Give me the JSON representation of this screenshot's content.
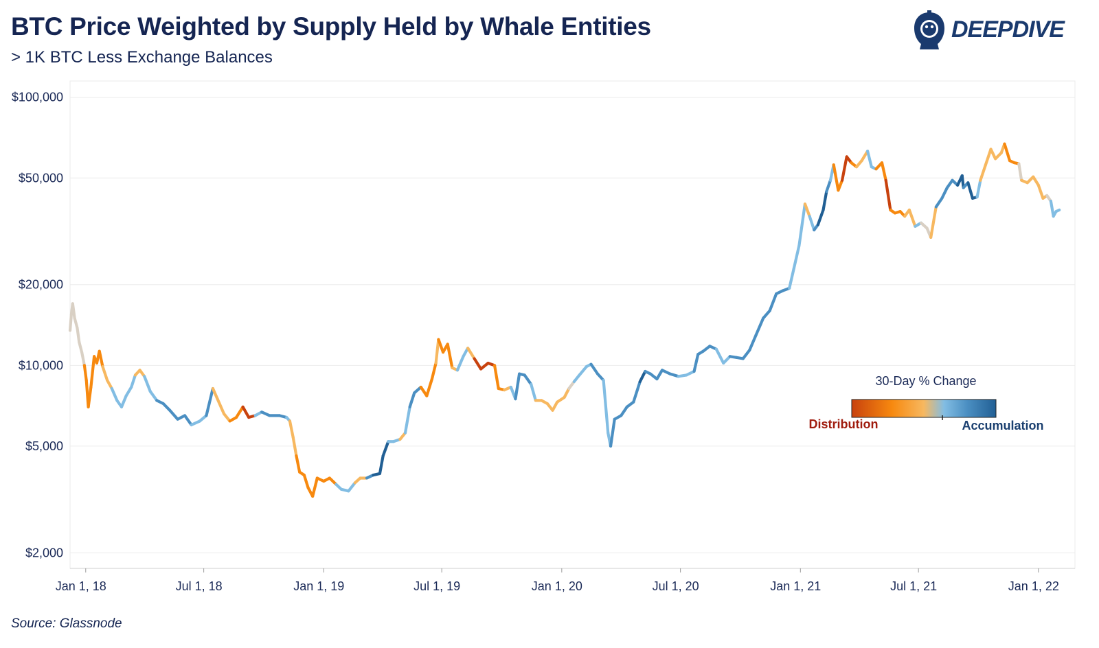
{
  "header": {
    "title": "BTC Price Weighted by Supply Held by Whale Entities",
    "subtitle": "> 1K BTC Less Exchange Balances",
    "logo_text": "DEEPDIVE"
  },
  "footer": {
    "source": "Source: Glassnode"
  },
  "colors": {
    "dist_strong": "#c8420e",
    "dist": "#f7890f",
    "dist_light": "#f7b860",
    "neutral": "#d9d0c4",
    "acc_light": "#82bde3",
    "acc": "#4b8fc2",
    "acc_strong": "#215f94",
    "grid": "#ebebeb",
    "text": "#1b2a57"
  },
  "chart_data": {
    "type": "line",
    "title": "BTC Price Weighted by Supply Held by Whale Entities",
    "subtitle": "> 1K BTC Less Exchange Balances",
    "xlabel": "",
    "ylabel": "",
    "y_scale": "log",
    "ylim": [
      1750,
      115000
    ],
    "xlim": [
      "2017-12-08",
      "2022-02-26"
    ],
    "y_ticks": [
      {
        "value": 2000,
        "label": "$2,000"
      },
      {
        "value": 5000,
        "label": "$5,000"
      },
      {
        "value": 10000,
        "label": "$10,000"
      },
      {
        "value": 20000,
        "label": "$20,000"
      },
      {
        "value": 50000,
        "label": "$50,000"
      },
      {
        "value": 100000,
        "label": "$100,000"
      }
    ],
    "x_ticks": [
      {
        "date": "2018-01-01",
        "label": "Jan 1, 18"
      },
      {
        "date": "2018-07-01",
        "label": "Jul 1, 18"
      },
      {
        "date": "2019-01-01",
        "label": "Jan 1, 19"
      },
      {
        "date": "2019-07-01",
        "label": "Jul 1, 19"
      },
      {
        "date": "2020-01-01",
        "label": "Jan 1, 20"
      },
      {
        "date": "2020-07-01",
        "label": "Jul 1, 20"
      },
      {
        "date": "2021-01-01",
        "label": "Jan 1, 21"
      },
      {
        "date": "2021-07-01",
        "label": "Jul 1, 21"
      },
      {
        "date": "2022-01-01",
        "label": "Jan 1, 22"
      }
    ],
    "grid": true,
    "legend": {
      "title": "30-Day % Change",
      "low_label": "Distribution",
      "high_label": "Accumulation",
      "placement": "center-right"
    },
    "series": [
      {
        "points": [
          [
            "2017-12-08",
            13500,
            "neutral"
          ],
          [
            "2017-12-10",
            15500,
            "neutral"
          ],
          [
            "2017-12-12",
            17000,
            "neutral"
          ],
          [
            "2017-12-15",
            15000,
            "neutral"
          ],
          [
            "2017-12-19",
            13800,
            "neutral"
          ],
          [
            "2017-12-22",
            12200,
            "neutral"
          ],
          [
            "2017-12-26",
            11200,
            "neutral"
          ],
          [
            "2017-12-30",
            10000,
            "neutral"
          ],
          [
            "2018-01-02",
            8800,
            "dist"
          ],
          [
            "2018-01-05",
            7000,
            "dist"
          ],
          [
            "2018-01-09",
            8300,
            "dist"
          ],
          [
            "2018-01-14",
            10800,
            "dist"
          ],
          [
            "2018-01-18",
            10200,
            "dist"
          ],
          [
            "2018-01-22",
            11300,
            "dist"
          ],
          [
            "2018-01-27",
            9900,
            "dist"
          ],
          [
            "2018-02-03",
            8800,
            "dist_light"
          ],
          [
            "2018-02-10",
            8200,
            "dist_light"
          ],
          [
            "2018-02-18",
            7400,
            "acc_light"
          ],
          [
            "2018-02-25",
            7000,
            "acc_light"
          ],
          [
            "2018-03-04",
            7700,
            "acc_light"
          ],
          [
            "2018-03-12",
            8300,
            "acc_light"
          ],
          [
            "2018-03-18",
            9200,
            "acc_light"
          ],
          [
            "2018-03-25",
            9600,
            "dist_light"
          ],
          [
            "2018-04-01",
            9100,
            "dist_light"
          ],
          [
            "2018-04-10",
            8000,
            "acc_light"
          ],
          [
            "2018-04-20",
            7400,
            "acc_light"
          ],
          [
            "2018-04-30",
            7200,
            "acc"
          ],
          [
            "2018-05-10",
            6800,
            "acc"
          ],
          [
            "2018-05-22",
            6300,
            "acc"
          ],
          [
            "2018-06-02",
            6500,
            "acc"
          ],
          [
            "2018-06-12",
            6000,
            "acc"
          ],
          [
            "2018-06-25",
            6200,
            "acc_light"
          ],
          [
            "2018-07-05",
            6500,
            "acc_light"
          ],
          [
            "2018-07-15",
            8200,
            "acc"
          ],
          [
            "2018-07-22",
            7500,
            "dist_light"
          ],
          [
            "2018-08-01",
            6600,
            "dist_light"
          ],
          [
            "2018-08-10",
            6200,
            "dist_light"
          ],
          [
            "2018-08-20",
            6400,
            "dist"
          ],
          [
            "2018-08-30",
            7000,
            "dist"
          ],
          [
            "2018-09-08",
            6400,
            "dist_strong"
          ],
          [
            "2018-09-18",
            6500,
            "dist_strong"
          ],
          [
            "2018-09-28",
            6700,
            "acc_light"
          ],
          [
            "2018-10-10",
            6500,
            "acc"
          ],
          [
            "2018-10-25",
            6500,
            "acc"
          ],
          [
            "2018-11-05",
            6400,
            "acc"
          ],
          [
            "2018-11-10",
            6200,
            "acc_light"
          ],
          [
            "2018-11-15",
            5400,
            "dist_light"
          ],
          [
            "2018-11-20",
            4600,
            "dist_light"
          ],
          [
            "2018-11-25",
            4000,
            "dist"
          ],
          [
            "2018-12-02",
            3900,
            "dist"
          ],
          [
            "2018-12-08",
            3500,
            "dist"
          ],
          [
            "2018-12-15",
            3250,
            "dist"
          ],
          [
            "2018-12-22",
            3800,
            "dist"
          ],
          [
            "2019-01-01",
            3700,
            "dist"
          ],
          [
            "2019-01-10",
            3800,
            "dist"
          ],
          [
            "2019-01-20",
            3600,
            "dist"
          ],
          [
            "2019-01-28",
            3450,
            "acc_light"
          ],
          [
            "2019-02-08",
            3400,
            "acc_light"
          ],
          [
            "2019-02-18",
            3650,
            "acc_light"
          ],
          [
            "2019-02-26",
            3800,
            "dist_light"
          ],
          [
            "2019-03-08",
            3800,
            "dist_light"
          ],
          [
            "2019-03-18",
            3900,
            "acc"
          ],
          [
            "2019-03-28",
            3950,
            "acc_strong"
          ],
          [
            "2019-04-02",
            4600,
            "acc_strong"
          ],
          [
            "2019-04-10",
            5200,
            "acc_strong"
          ],
          [
            "2019-04-18",
            5200,
            "acc_light"
          ],
          [
            "2019-04-28",
            5300,
            "acc_light"
          ],
          [
            "2019-05-06",
            5600,
            "dist_light"
          ],
          [
            "2019-05-13",
            7000,
            "acc_light"
          ],
          [
            "2019-05-20",
            7900,
            "acc"
          ],
          [
            "2019-05-30",
            8300,
            "acc"
          ],
          [
            "2019-06-08",
            7700,
            "dist"
          ],
          [
            "2019-06-16",
            8900,
            "dist"
          ],
          [
            "2019-06-22",
            10200,
            "dist"
          ],
          [
            "2019-06-26",
            12500,
            "dist_light"
          ],
          [
            "2019-07-03",
            11200,
            "dist"
          ],
          [
            "2019-07-10",
            12000,
            "dist"
          ],
          [
            "2019-07-17",
            9800,
            "dist"
          ],
          [
            "2019-07-25",
            9600,
            "dist_light"
          ],
          [
            "2019-08-03",
            10800,
            "acc_light"
          ],
          [
            "2019-08-10",
            11600,
            "acc_light"
          ],
          [
            "2019-08-20",
            10600,
            "dist_light"
          ],
          [
            "2019-08-30",
            9700,
            "dist_strong"
          ],
          [
            "2019-09-10",
            10200,
            "dist_strong"
          ],
          [
            "2019-09-20",
            10000,
            "dist_strong"
          ],
          [
            "2019-09-26",
            8200,
            "dist"
          ],
          [
            "2019-10-05",
            8100,
            "dist"
          ],
          [
            "2019-10-15",
            8300,
            "dist_light"
          ],
          [
            "2019-10-22",
            7500,
            "acc_light"
          ],
          [
            "2019-10-28",
            9300,
            "acc"
          ],
          [
            "2019-11-05",
            9200,
            "acc"
          ],
          [
            "2019-11-15",
            8500,
            "acc"
          ],
          [
            "2019-11-22",
            7400,
            "acc_light"
          ],
          [
            "2019-12-01",
            7400,
            "dist_light"
          ],
          [
            "2019-12-10",
            7200,
            "dist_light"
          ],
          [
            "2019-12-18",
            6800,
            "dist_light"
          ],
          [
            "2019-12-25",
            7300,
            "dist_light"
          ],
          [
            "2020-01-05",
            7600,
            "dist_light"
          ],
          [
            "2020-01-12",
            8200,
            "dist_light"
          ],
          [
            "2020-01-20",
            8700,
            "neutral"
          ],
          [
            "2020-01-28",
            9200,
            "acc_light"
          ],
          [
            "2020-02-08",
            9900,
            "acc_light"
          ],
          [
            "2020-02-15",
            10100,
            "acc_light"
          ],
          [
            "2020-02-25",
            9300,
            "acc"
          ],
          [
            "2020-03-05",
            8800,
            "acc"
          ],
          [
            "2020-03-12",
            5600,
            "acc_light"
          ],
          [
            "2020-03-16",
            5000,
            "acc_light"
          ],
          [
            "2020-03-22",
            6300,
            "acc"
          ],
          [
            "2020-04-01",
            6500,
            "acc"
          ],
          [
            "2020-04-10",
            7000,
            "acc"
          ],
          [
            "2020-04-20",
            7300,
            "acc"
          ],
          [
            "2020-04-30",
            8700,
            "acc"
          ],
          [
            "2020-05-08",
            9500,
            "acc_strong"
          ],
          [
            "2020-05-16",
            9300,
            "acc"
          ],
          [
            "2020-05-26",
            8900,
            "acc"
          ],
          [
            "2020-06-03",
            9600,
            "acc"
          ],
          [
            "2020-06-15",
            9300,
            "acc"
          ],
          [
            "2020-06-28",
            9100,
            "acc"
          ],
          [
            "2020-07-10",
            9200,
            "acc_light"
          ],
          [
            "2020-07-22",
            9500,
            "acc_light"
          ],
          [
            "2020-07-28",
            11000,
            "acc"
          ],
          [
            "2020-08-05",
            11300,
            "acc"
          ],
          [
            "2020-08-15",
            11800,
            "acc"
          ],
          [
            "2020-08-25",
            11500,
            "acc"
          ],
          [
            "2020-09-05",
            10200,
            "acc_light"
          ],
          [
            "2020-09-15",
            10800,
            "acc_light"
          ],
          [
            "2020-09-25",
            10700,
            "acc"
          ],
          [
            "2020-10-05",
            10600,
            "acc"
          ],
          [
            "2020-10-15",
            11400,
            "acc"
          ],
          [
            "2020-10-25",
            13000,
            "acc"
          ],
          [
            "2020-11-05",
            15000,
            "acc"
          ],
          [
            "2020-11-15",
            16000,
            "acc"
          ],
          [
            "2020-11-25",
            18500,
            "acc"
          ],
          [
            "2020-12-05",
            19000,
            "acc"
          ],
          [
            "2020-12-15",
            19400,
            "acc"
          ],
          [
            "2020-12-22",
            23000,
            "acc_light"
          ],
          [
            "2020-12-30",
            28000,
            "acc_light"
          ],
          [
            "2021-01-08",
            40000,
            "acc_light"
          ],
          [
            "2021-01-15",
            36000,
            "dist_light"
          ],
          [
            "2021-01-22",
            32000,
            "acc_light"
          ],
          [
            "2021-01-28",
            33500,
            "acc"
          ],
          [
            "2021-02-05",
            38000,
            "acc_strong"
          ],
          [
            "2021-02-10",
            44500,
            "acc_strong"
          ],
          [
            "2021-02-16",
            49000,
            "acc"
          ],
          [
            "2021-02-21",
            56000,
            "acc_light"
          ],
          [
            "2021-02-28",
            45000,
            "dist"
          ],
          [
            "2021-03-06",
            49000,
            "dist"
          ],
          [
            "2021-03-13",
            60000,
            "dist_strong"
          ],
          [
            "2021-03-20",
            57000,
            "dist_strong"
          ],
          [
            "2021-03-28",
            55000,
            "dist"
          ],
          [
            "2021-04-05",
            58000,
            "dist_light"
          ],
          [
            "2021-04-14",
            63000,
            "dist_light"
          ],
          [
            "2021-04-20",
            55000,
            "acc_light"
          ],
          [
            "2021-04-27",
            54000,
            "acc_light"
          ],
          [
            "2021-05-06",
            57000,
            "dist"
          ],
          [
            "2021-05-12",
            49000,
            "dist"
          ],
          [
            "2021-05-19",
            38000,
            "dist_strong"
          ],
          [
            "2021-05-26",
            37000,
            "dist"
          ],
          [
            "2021-06-03",
            37500,
            "dist"
          ],
          [
            "2021-06-10",
            36000,
            "dist"
          ],
          [
            "2021-06-17",
            38000,
            "dist_light"
          ],
          [
            "2021-06-26",
            33000,
            "dist_light"
          ],
          [
            "2021-07-05",
            34000,
            "acc_light"
          ],
          [
            "2021-07-14",
            32500,
            "neutral"
          ],
          [
            "2021-07-20",
            30000,
            "neutral"
          ],
          [
            "2021-07-28",
            39000,
            "dist_light"
          ],
          [
            "2021-08-06",
            42000,
            "acc"
          ],
          [
            "2021-08-14",
            46000,
            "acc"
          ],
          [
            "2021-08-22",
            49000,
            "acc"
          ],
          [
            "2021-08-30",
            47000,
            "acc"
          ],
          [
            "2021-09-06",
            51000,
            "acc_strong"
          ],
          [
            "2021-09-08",
            46000,
            "acc_strong"
          ],
          [
            "2021-09-15",
            48000,
            "acc"
          ],
          [
            "2021-09-22",
            42000,
            "acc_strong"
          ],
          [
            "2021-09-29",
            42500,
            "acc_strong"
          ],
          [
            "2021-10-04",
            49000,
            "acc_light"
          ],
          [
            "2021-10-12",
            56000,
            "dist_light"
          ],
          [
            "2021-10-20",
            64000,
            "dist_light"
          ],
          [
            "2021-10-27",
            59000,
            "dist_light"
          ],
          [
            "2021-11-05",
            62000,
            "dist_light"
          ],
          [
            "2021-11-10",
            67000,
            "dist_light"
          ],
          [
            "2021-11-18",
            58000,
            "dist"
          ],
          [
            "2021-11-25",
            57000,
            "dist"
          ],
          [
            "2021-12-02",
            56500,
            "dist"
          ],
          [
            "2021-12-06",
            49000,
            "neutral"
          ],
          [
            "2021-12-15",
            48000,
            "dist_light"
          ],
          [
            "2021-12-24",
            50500,
            "dist_light"
          ],
          [
            "2022-01-01",
            47000,
            "dist_light"
          ],
          [
            "2022-01-08",
            42000,
            "dist_light"
          ],
          [
            "2022-01-14",
            43000,
            "dist_light"
          ],
          [
            "2022-01-20",
            41000,
            "neutral"
          ],
          [
            "2022-01-24",
            36000,
            "acc_light"
          ],
          [
            "2022-01-28",
            37500,
            "acc_light"
          ],
          [
            "2022-02-02",
            38000,
            "acc_light"
          ]
        ]
      }
    ]
  }
}
